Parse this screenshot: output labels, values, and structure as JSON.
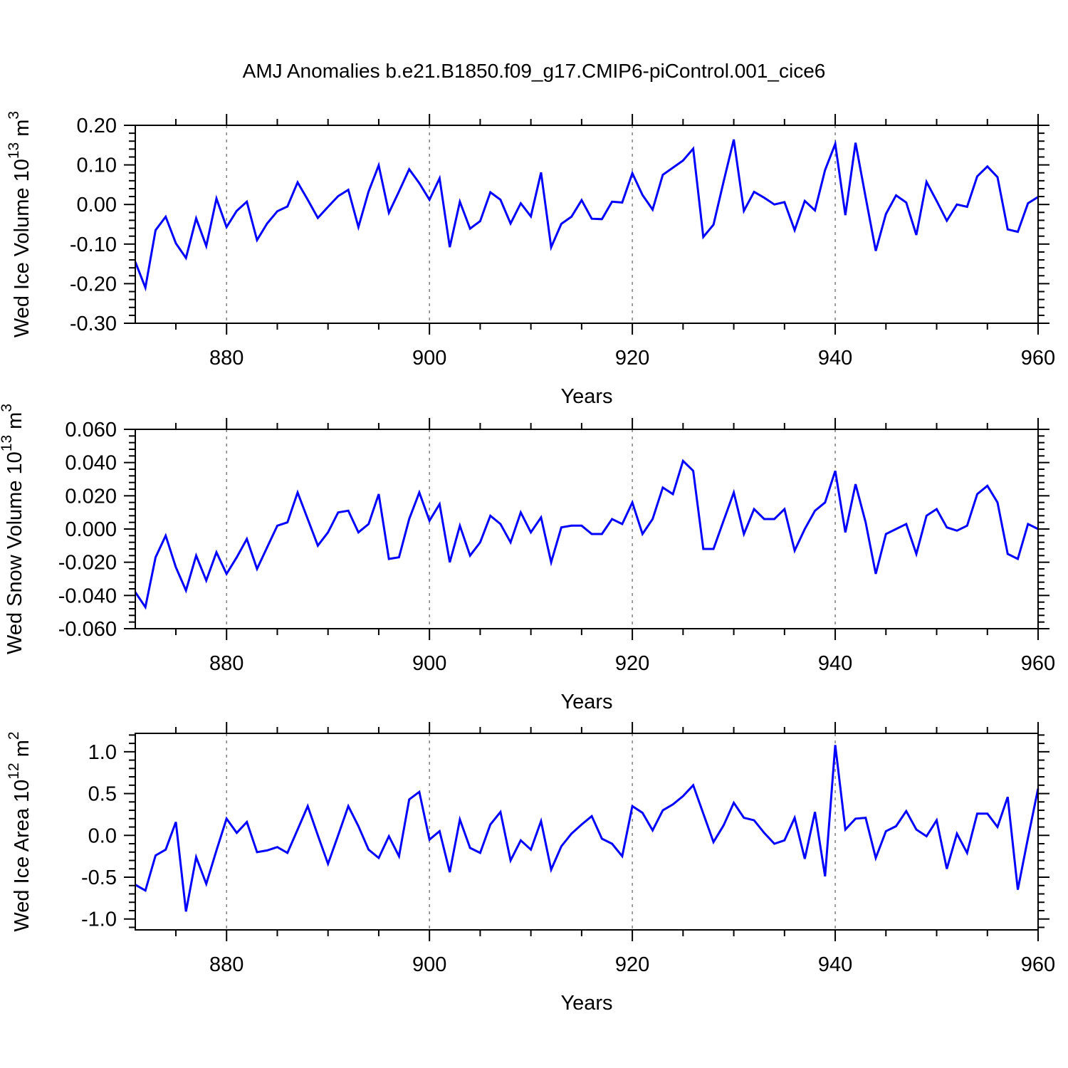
{
  "title": "AMJ Anomalies b.e21.B1850.f09_g17.CMIP6-piControl.001_cice6",
  "colors": {
    "background": "#ffffff",
    "line": "#0000ff",
    "frame": "#000000",
    "grid": "#808080",
    "text": "#000000"
  },
  "years": [
    871,
    872,
    873,
    874,
    875,
    876,
    877,
    878,
    879,
    880,
    881,
    882,
    883,
    884,
    885,
    886,
    887,
    888,
    889,
    890,
    891,
    892,
    893,
    894,
    895,
    896,
    897,
    898,
    899,
    900,
    901,
    902,
    903,
    904,
    905,
    906,
    907,
    908,
    909,
    910,
    911,
    912,
    913,
    914,
    915,
    916,
    917,
    918,
    919,
    920,
    921,
    922,
    923,
    924,
    925,
    926,
    927,
    928,
    929,
    930,
    931,
    932,
    933,
    934,
    935,
    936,
    937,
    938,
    939,
    940,
    941,
    942,
    943,
    944,
    945,
    946,
    947,
    948,
    949,
    950,
    951,
    952,
    953,
    954,
    955,
    956,
    957,
    958,
    959,
    960
  ],
  "chart_data": [
    {
      "id": "wed-ice-volume",
      "type": "line",
      "title": "",
      "xlabel": "Years",
      "ylabel_parts": [
        {
          "text": "Wed Ice Volume 10"
        },
        {
          "text": "13",
          "sup": true
        },
        {
          "text": " m"
        },
        {
          "text": "3",
          "sup": true
        }
      ],
      "xlim": [
        871,
        960
      ],
      "ylim": [
        -0.3,
        0.2
      ],
      "xticks": [
        880,
        900,
        920,
        940,
        960
      ],
      "x_minor_step": 5,
      "grid_x": [
        880,
        900,
        920,
        940
      ],
      "yticks": [
        {
          "v": 0.2,
          "label": "0.20"
        },
        {
          "v": 0.1,
          "label": "0.10"
        },
        {
          "v": 0.0,
          "label": "0.00"
        },
        {
          "v": -0.1,
          "label": "-0.10"
        },
        {
          "v": -0.2,
          "label": "-0.20"
        },
        {
          "v": -0.3,
          "label": "-0.30"
        }
      ],
      "y_minor_step": 0.02,
      "legend": "none",
      "values": [
        -0.145,
        -0.21,
        -0.065,
        -0.031,
        -0.098,
        -0.135,
        -0.035,
        -0.105,
        0.015,
        -0.057,
        -0.016,
        0.007,
        -0.09,
        -0.048,
        -0.017,
        -0.005,
        0.056,
        0.012,
        -0.034,
        -0.006,
        0.021,
        0.037,
        -0.057,
        0.033,
        0.099,
        -0.021,
        0.033,
        0.089,
        0.054,
        0.012,
        0.066,
        -0.108,
        0.007,
        -0.061,
        -0.042,
        0.031,
        0.012,
        -0.048,
        0.003,
        -0.03,
        0.081,
        -0.108,
        -0.049,
        -0.031,
        0.011,
        -0.036,
        -0.037,
        0.007,
        0.005,
        0.079,
        0.024,
        -0.013,
        0.075,
        0.093,
        0.111,
        0.141,
        -0.082,
        -0.051,
        0.058,
        0.164,
        -0.016,
        0.032,
        0.017,
        0.0,
        0.006,
        -0.065,
        0.009,
        -0.015,
        0.087,
        0.153,
        -0.027,
        0.156,
        0.018,
        -0.117,
        -0.024,
        0.023,
        0.005,
        -0.077,
        0.057,
        0.009,
        -0.041,
        0.0,
        -0.006,
        0.071,
        0.096,
        0.069,
        -0.063,
        -0.069,
        0.003,
        0.019
      ]
    },
    {
      "id": "wed-snow-volume",
      "type": "line",
      "title": "",
      "xlabel": "Years",
      "ylabel_parts": [
        {
          "text": "Wed Snow Volume 10"
        },
        {
          "text": "13",
          "sup": true
        },
        {
          "text": " m"
        },
        {
          "text": "3",
          "sup": true
        }
      ],
      "xlim": [
        871,
        960
      ],
      "ylim": [
        -0.06,
        0.06
      ],
      "xticks": [
        880,
        900,
        920,
        940,
        960
      ],
      "x_minor_step": 5,
      "grid_x": [
        880,
        900,
        920,
        940
      ],
      "yticks": [
        {
          "v": 0.06,
          "label": "0.060"
        },
        {
          "v": 0.04,
          "label": "0.040"
        },
        {
          "v": 0.02,
          "label": "0.020"
        },
        {
          "v": 0.0,
          "label": "0.000"
        },
        {
          "v": -0.02,
          "label": "-0.020"
        },
        {
          "v": -0.04,
          "label": "-0.040"
        },
        {
          "v": -0.06,
          "label": "-0.060"
        }
      ],
      "y_minor_step": 0.004,
      "legend": "none",
      "values": [
        -0.038,
        -0.047,
        -0.017,
        -0.004,
        -0.023,
        -0.037,
        -0.016,
        -0.031,
        -0.014,
        -0.027,
        -0.017,
        -0.006,
        -0.024,
        -0.011,
        0.002,
        0.004,
        0.022,
        0.006,
        -0.01,
        -0.002,
        0.01,
        0.011,
        -0.002,
        0.003,
        0.021,
        -0.018,
        -0.017,
        0.006,
        0.022,
        0.005,
        0.015,
        -0.02,
        0.002,
        -0.016,
        -0.008,
        0.008,
        0.003,
        -0.008,
        0.01,
        -0.002,
        0.007,
        -0.02,
        0.001,
        0.002,
        0.002,
        -0.003,
        -0.003,
        0.006,
        0.003,
        0.016,
        -0.003,
        0.006,
        0.025,
        0.021,
        0.041,
        0.035,
        -0.012,
        -0.012,
        0.005,
        0.022,
        -0.003,
        0.012,
        0.006,
        0.006,
        0.012,
        -0.013,
        0.0,
        0.011,
        0.016,
        0.035,
        -0.002,
        0.027,
        0.004,
        -0.027,
        -0.003,
        0.0,
        0.003,
        -0.015,
        0.008,
        0.012,
        0.001,
        -0.001,
        0.002,
        0.021,
        0.026,
        0.016,
        -0.015,
        -0.018,
        0.003,
        0.0
      ]
    },
    {
      "id": "wed-ice-area",
      "type": "line",
      "title": "",
      "xlabel": "Years",
      "ylabel_parts": [
        {
          "text": "Wed Ice Area 10"
        },
        {
          "text": "12",
          "sup": true
        },
        {
          "text": " m"
        },
        {
          "text": "2",
          "sup": true
        }
      ],
      "xlim": [
        871,
        960
      ],
      "ylim": [
        -1.13,
        1.22
      ],
      "xticks": [
        880,
        900,
        920,
        940,
        960
      ],
      "x_minor_step": 5,
      "grid_x": [
        880,
        900,
        920,
        940
      ],
      "yticks": [
        {
          "v": 1.0,
          "label": "1.0"
        },
        {
          "v": 0.5,
          "label": "0.5"
        },
        {
          "v": 0.0,
          "label": "0.0"
        },
        {
          "v": -0.5,
          "label": "-0.5"
        },
        {
          "v": -1.0,
          "label": "-1.0"
        }
      ],
      "y_minor_step": 0.1,
      "legend": "none",
      "values": [
        -0.59,
        -0.66,
        -0.24,
        -0.17,
        0.16,
        -0.91,
        -0.26,
        -0.58,
        -0.18,
        0.2,
        0.03,
        0.16,
        -0.2,
        -0.18,
        -0.14,
        -0.21,
        0.07,
        0.35,
        0.0,
        -0.34,
        0.0,
        0.35,
        0.11,
        -0.17,
        -0.27,
        -0.01,
        -0.25,
        0.43,
        0.52,
        -0.05,
        0.05,
        -0.44,
        0.19,
        -0.15,
        -0.21,
        0.13,
        0.28,
        -0.3,
        -0.06,
        -0.17,
        0.17,
        -0.41,
        -0.13,
        0.02,
        0.13,
        0.23,
        -0.04,
        -0.1,
        -0.25,
        0.35,
        0.27,
        0.06,
        0.3,
        0.37,
        0.47,
        0.6,
        0.26,
        -0.08,
        0.12,
        0.39,
        0.21,
        0.18,
        0.03,
        -0.1,
        -0.06,
        0.21,
        -0.28,
        0.28,
        -0.49,
        1.08,
        0.07,
        0.2,
        0.21,
        -0.27,
        0.05,
        0.11,
        0.29,
        0.07,
        -0.01,
        0.18,
        -0.4,
        0.02,
        -0.21,
        0.26,
        0.26,
        0.1,
        0.46,
        -0.65,
        -0.03,
        0.56
      ]
    }
  ]
}
